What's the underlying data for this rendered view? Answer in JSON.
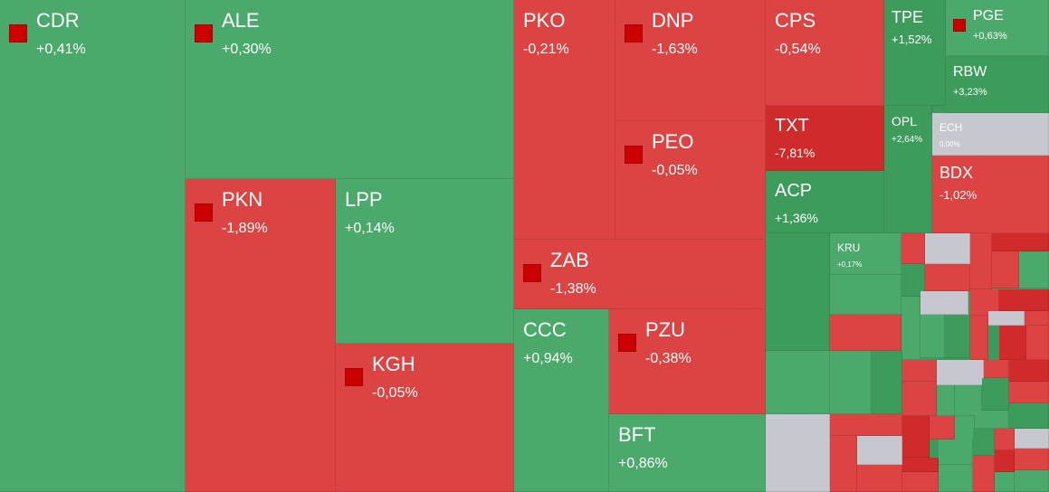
{
  "colors": {
    "up": "#4aa96b",
    "up_strong": "#3d9c5b",
    "down": "#dc4343",
    "down_strong": "#cf2b2b",
    "flat": "#c7c8cf",
    "marker": "#cc0000"
  },
  "chart_data": {
    "type": "heatmap",
    "items": [
      {
        "ticker": "CDR",
        "change": "+0,41%",
        "value": 0.41,
        "marker": true
      },
      {
        "ticker": "ALE",
        "change": "+0,30%",
        "value": 0.3,
        "marker": true
      },
      {
        "ticker": "PKN",
        "change": "-1,89%",
        "value": -1.89,
        "marker": true
      },
      {
        "ticker": "LPP",
        "change": "+0,14%",
        "value": 0.14,
        "marker": false
      },
      {
        "ticker": "KGH",
        "change": "-0,05%",
        "value": -0.05,
        "marker": true
      },
      {
        "ticker": "PKO",
        "change": "-0,21%",
        "value": -0.21,
        "marker": false
      },
      {
        "ticker": "DNP",
        "change": "-1,63%",
        "value": -1.63,
        "marker": true
      },
      {
        "ticker": "PEO",
        "change": "-0,05%",
        "value": -0.05,
        "marker": true
      },
      {
        "ticker": "ZAB",
        "change": "-1,38%",
        "value": -1.38,
        "marker": true
      },
      {
        "ticker": "CCC",
        "change": "+0,94%",
        "value": 0.94,
        "marker": false
      },
      {
        "ticker": "PZU",
        "change": "-0,38%",
        "value": -0.38,
        "marker": true
      },
      {
        "ticker": "BFT",
        "change": "+0,86%",
        "value": 0.86,
        "marker": false
      },
      {
        "ticker": "CPS",
        "change": "-0,54%",
        "value": -0.54,
        "marker": false
      },
      {
        "ticker": "TXT",
        "change": "-7,81%",
        "value": -7.81,
        "marker": false
      },
      {
        "ticker": "ACP",
        "change": "+1,36%",
        "value": 1.36,
        "marker": false
      },
      {
        "ticker": "TPE",
        "change": "+1,52%",
        "value": 1.52,
        "marker": false
      },
      {
        "ticker": "PGE",
        "change": "+0,63%",
        "value": 0.63,
        "marker": true
      },
      {
        "ticker": "RBW",
        "change": "+3,23%",
        "value": 3.23,
        "marker": false
      },
      {
        "ticker": "OPL",
        "change": "+2,64%",
        "value": 2.64,
        "marker": false
      },
      {
        "ticker": "ECH",
        "change": "0,00%",
        "value": 0.0,
        "marker": false
      },
      {
        "ticker": "BDX",
        "change": "-1,02%",
        "value": -1.02,
        "marker": false
      },
      {
        "ticker": "KRU",
        "change": "+0,17%",
        "value": 0.17,
        "marker": false
      }
    ]
  }
}
